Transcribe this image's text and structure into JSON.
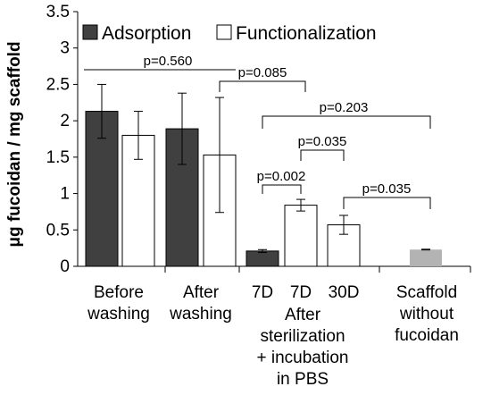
{
  "chart_data": {
    "type": "bar",
    "ylabel": "μg fucoidan / mg scaffold",
    "ylim": [
      0,
      3.5
    ],
    "yticks": [
      "0",
      "0.5",
      "1",
      "1.5",
      "2",
      "2.5",
      "3",
      "3.5"
    ],
    "grid": false,
    "legend_position": "top",
    "colors": {
      "adsorption": "#404040",
      "functionalization": "#ffffff",
      "scaffold": "#b3b3b3",
      "edge": "#000000"
    },
    "series": [
      {
        "name": "Adsorption",
        "color": "#404040"
      },
      {
        "name": "Functionalization",
        "color": "#ffffff"
      }
    ],
    "bars": [
      {
        "group": "Before washing",
        "series": "Adsorption",
        "value": 2.13,
        "err": 0.37
      },
      {
        "group": "Before washing",
        "series": "Functionalization",
        "value": 1.8,
        "err": 0.33
      },
      {
        "group": "After washing",
        "series": "Adsorption",
        "value": 1.89,
        "err": 0.49
      },
      {
        "group": "After washing",
        "series": "Functionalization",
        "value": 1.53,
        "err": 0.79
      },
      {
        "group": "After sterilization + incubation in PBS",
        "label": "7D",
        "series": "Adsorption",
        "value": 0.21,
        "err": 0.02
      },
      {
        "group": "After sterilization + incubation in PBS",
        "label": "7D",
        "series": "Functionalization",
        "value": 0.84,
        "err": 0.08
      },
      {
        "group": "After sterilization + incubation in PBS",
        "label": "30D",
        "series": "Functionalization",
        "value": 0.57,
        "err": 0.13
      },
      {
        "group": "Scaffold without fucoidan",
        "series": "Scaffold",
        "value": 0.23,
        "err": 0.005
      }
    ],
    "comparisons": [
      {
        "label": "p=0.560"
      },
      {
        "label": "p=0.085"
      },
      {
        "label": "p=0.203"
      },
      {
        "label": "p=0.035"
      },
      {
        "label": "p=0.002"
      },
      {
        "label": "p=0.035"
      }
    ],
    "category_labels": [
      {
        "lines": [
          "Before",
          "washing"
        ]
      },
      {
        "lines": [
          "After",
          "washing"
        ]
      },
      {
        "lines": [
          "7D"
        ]
      },
      {
        "lines": [
          "7D"
        ]
      },
      {
        "lines": [
          "30D"
        ]
      },
      {
        "lines": [
          "After",
          "sterilization",
          "+ incubation",
          "in PBS"
        ]
      },
      {
        "lines": [
          "Scaffold",
          "without",
          "fucoidan"
        ]
      }
    ]
  }
}
